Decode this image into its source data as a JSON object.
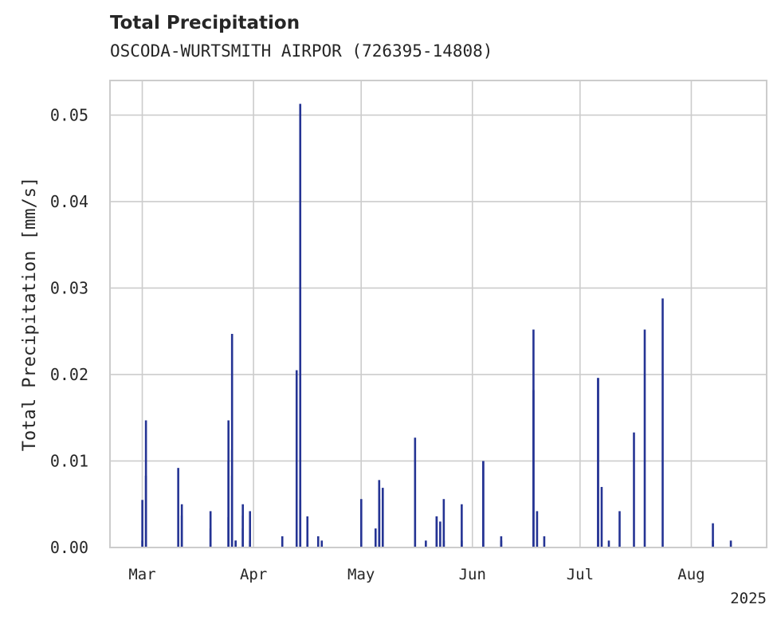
{
  "chart_data": {
    "type": "bar",
    "title": "Total Precipitation",
    "subtitle": "OSCODA-WURTSMITH AIRPOR (726395-14808)",
    "xlabel": "",
    "ylabel": "Total Precipitation [mm/s]",
    "xlim": [
      "2025-02-20",
      "2025-08-22"
    ],
    "ylim": [
      0,
      0.054
    ],
    "grid": true,
    "color": "#253494",
    "x_ticks": [
      {
        "date": "2025-03-01",
        "label": "Mar"
      },
      {
        "date": "2025-04-01",
        "label": "Apr"
      },
      {
        "date": "2025-05-01",
        "label": "May"
      },
      {
        "date": "2025-06-01",
        "label": "Jun"
      },
      {
        "date": "2025-07-01",
        "label": "Jul"
      },
      {
        "date": "2025-08-01",
        "label": "Aug"
      }
    ],
    "x_offset_label": "2025",
    "y_ticks": [
      {
        "value": 0.0,
        "label": "0.00"
      },
      {
        "value": 0.01,
        "label": "0.01"
      },
      {
        "value": 0.02,
        "label": "0.02"
      },
      {
        "value": 0.03,
        "label": "0.03"
      },
      {
        "value": 0.04,
        "label": "0.04"
      },
      {
        "value": 0.05,
        "label": "0.05"
      }
    ],
    "x": [
      "2025-03-01",
      "2025-03-01",
      "2025-03-02",
      "2025-03-02",
      "2025-03-11",
      "2025-03-12",
      "2025-03-12",
      "2025-03-20",
      "2025-03-20",
      "2025-03-25",
      "2025-03-25",
      "2025-03-25",
      "2025-03-26",
      "2025-03-26",
      "2025-03-26",
      "2025-03-27",
      "2025-03-27",
      "2025-03-29",
      "2025-03-29",
      "2025-03-29",
      "2025-03-31",
      "2025-03-31",
      "2025-04-09",
      "2025-04-13",
      "2025-04-14",
      "2025-04-14",
      "2025-04-16",
      "2025-04-16",
      "2025-04-19",
      "2025-04-20",
      "2025-05-01",
      "2025-05-05",
      "2025-05-06",
      "2025-05-06",
      "2025-05-06",
      "2025-05-07",
      "2025-05-16",
      "2025-05-19",
      "2025-05-22",
      "2025-05-22",
      "2025-05-23",
      "2025-05-24",
      "2025-05-24",
      "2025-05-29",
      "2025-05-29",
      "2025-06-04",
      "2025-06-04",
      "2025-06-09",
      "2025-06-09",
      "2025-06-18",
      "2025-06-18",
      "2025-06-19",
      "2025-06-21",
      "2025-07-06",
      "2025-07-06",
      "2025-07-07",
      "2025-07-09",
      "2025-07-12",
      "2025-07-16",
      "2025-07-19",
      "2025-07-24",
      "2025-08-07",
      "2025-08-07",
      "2025-08-12"
    ],
    "values": [
      0.0008,
      0.0055,
      0.0147,
      0.0083,
      0.0092,
      0.0037,
      0.005,
      0.0042,
      0.0022,
      0.0035,
      0.0147,
      0.01,
      0.0083,
      0.0247,
      0.0113,
      0.0008,
      0.0008,
      0.0037,
      0.005,
      0.0022,
      0.0042,
      0.0008,
      0.0013,
      0.0205,
      0.0513,
      0.0055,
      0.0008,
      0.0036,
      0.0013,
      0.0008,
      0.0056,
      0.0022,
      0.0078,
      0.0069,
      0.0056,
      0.0069,
      0.0127,
      0.0008,
      0.0036,
      0.0036,
      0.003,
      0.0056,
      0.0008,
      0.005,
      0.0008,
      0.01,
      0.01,
      0.0013,
      0.0008,
      0.0252,
      0.0182,
      0.0042,
      0.0013,
      0.0196,
      0.0196,
      0.007,
      0.0008,
      0.0042,
      0.0133,
      0.0252,
      0.0288,
      0.0028,
      0.0008,
      0.0008
    ]
  }
}
